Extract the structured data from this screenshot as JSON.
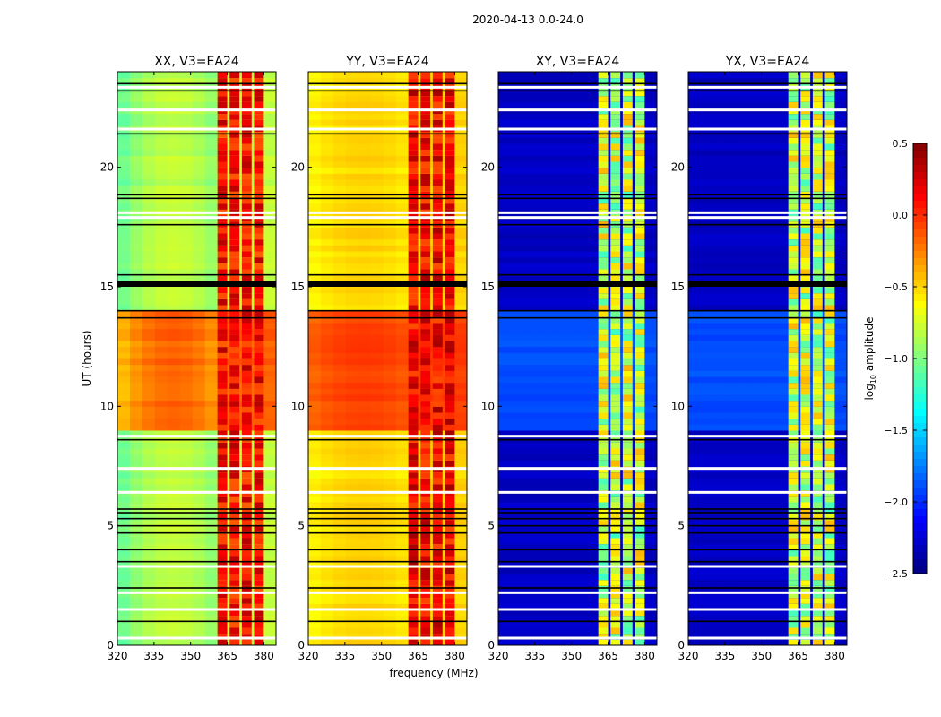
{
  "chart_data": {
    "type": "heatmap",
    "title": "2020-04-13 0.0-24.0",
    "xlabel": "frequency (MHz)",
    "ylabel": "UT (hours)",
    "xlim": [
      320,
      385
    ],
    "ylim": [
      0,
      24
    ],
    "xticks": [
      320,
      335,
      350,
      365,
      380
    ],
    "yticks": [
      0,
      5,
      10,
      15,
      20
    ],
    "colormap": "jet",
    "colorbar": {
      "label_main": "log",
      "label_sub": "10",
      "label_rest": " amplitude",
      "range": [
        -2.5,
        0.5
      ],
      "ticks": [
        "0.5",
        "0.0",
        "−0.5",
        "−1.0",
        "−1.5",
        "−2.0",
        "−2.5"
      ],
      "tick_values": [
        0.5,
        0.0,
        -0.5,
        -1.0,
        -1.5,
        -2.0,
        -2.5
      ]
    },
    "panels": [
      {
        "title": "XX, V3=EA24",
        "background": -0.8,
        "busy_hours": [
          9,
          14
        ],
        "busy_background": -0.15,
        "rfi_level": 0.1,
        "edge_falloff": 0.25
      },
      {
        "title": "YY, V3=EA24",
        "background": -0.5,
        "busy_hours": [
          9,
          14
        ],
        "busy_background": -0.05,
        "rfi_level": 0.15,
        "edge_falloff": 0.1
      },
      {
        "title": "XY, V3=EA24",
        "background": -2.3,
        "busy_hours": [
          9,
          14
        ],
        "busy_background": -1.9,
        "rfi_level": -0.8,
        "edge_falloff": 0
      },
      {
        "title": "YX, V3=EA24",
        "background": -2.3,
        "busy_hours": [
          9,
          14
        ],
        "busy_background": -1.9,
        "rfi_level": -0.8,
        "edge_falloff": 0
      }
    ],
    "rfi_subbands_mhz": [
      [
        361,
        365
      ],
      [
        366,
        370
      ],
      [
        371,
        375
      ],
      [
        376,
        380
      ]
    ],
    "flagged_black_hours": [
      1.0,
      2.4,
      3.5,
      4.0,
      4.7,
      5.0,
      5.3,
      5.55,
      5.7,
      8.6,
      13.7,
      14.0,
      15.5,
      17.6,
      18.7,
      18.85,
      21.4,
      23.2,
      23.5
    ],
    "flagged_black_band_hours": [
      15.0,
      15.25
    ],
    "blank_white_hours": [
      0.3,
      1.5,
      2.2,
      3.3,
      6.4,
      7.4,
      8.75,
      17.9,
      18.1,
      21.6,
      22.4,
      23.35
    ]
  }
}
